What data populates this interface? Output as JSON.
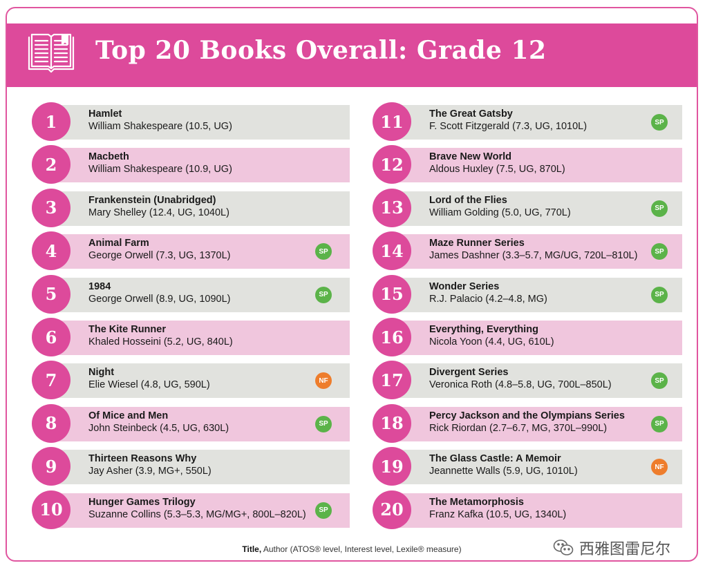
{
  "header": {
    "title": "Top 20 Books Overall: Grade 12",
    "icon": "open-book-icon"
  },
  "colors": {
    "brand_pink": "#dd4a9b",
    "row_gray": "#e1e2de",
    "row_pink": "#f0c6dd",
    "sp_green": "#5bb349",
    "nf_orange": "#ee7d2c"
  },
  "books": [
    {
      "rank": "1",
      "title": "Hamlet",
      "author": "William Shakespeare (10.5, UG)",
      "badge": ""
    },
    {
      "rank": "2",
      "title": "Macbeth",
      "author": "William Shakespeare (10.9, UG)",
      "badge": ""
    },
    {
      "rank": "3",
      "title": "Frankenstein (Unabridged)",
      "author": "Mary Shelley (12.4, UG, 1040L)",
      "badge": ""
    },
    {
      "rank": "4",
      "title": "Animal Farm",
      "author": "George Orwell (7.3, UG, 1370L)",
      "badge": "SP"
    },
    {
      "rank": "5",
      "title": "1984",
      "author": "George Orwell (8.9, UG, 1090L)",
      "badge": "SP"
    },
    {
      "rank": "6",
      "title": "The Kite Runner",
      "author": "Khaled Hosseini (5.2, UG, 840L)",
      "badge": ""
    },
    {
      "rank": "7",
      "title": "Night",
      "author": "Elie Wiesel (4.8, UG, 590L)",
      "badge": "NF"
    },
    {
      "rank": "8",
      "title": "Of Mice and Men",
      "author": "John Steinbeck (4.5, UG, 630L)",
      "badge": "SP"
    },
    {
      "rank": "9",
      "title": "Thirteen Reasons Why",
      "author": "Jay Asher (3.9, MG+, 550L)",
      "badge": ""
    },
    {
      "rank": "10",
      "title": "Hunger Games Trilogy",
      "author": "Suzanne Collins (5.3–5.3, MG/MG+, 800L–820L)",
      "badge": "SP"
    },
    {
      "rank": "11",
      "title": "The Great Gatsby",
      "author": "F. Scott Fitzgerald (7.3, UG, 1010L)",
      "badge": "SP"
    },
    {
      "rank": "12",
      "title": "Brave New World",
      "author": "Aldous Huxley (7.5, UG, 870L)",
      "badge": ""
    },
    {
      "rank": "13",
      "title": "Lord of the Flies",
      "author": "William Golding (5.0, UG, 770L)",
      "badge": "SP"
    },
    {
      "rank": "14",
      "title": "Maze Runner Series",
      "author": "James Dashner (3.3–5.7, MG/UG, 720L–810L)",
      "badge": "SP"
    },
    {
      "rank": "15",
      "title": "Wonder Series",
      "author": "R.J. Palacio (4.2–4.8, MG)",
      "badge": "SP"
    },
    {
      "rank": "16",
      "title": "Everything, Everything",
      "author": "Nicola Yoon (4.4, UG, 610L)",
      "badge": ""
    },
    {
      "rank": "17",
      "title": "Divergent Series",
      "author": "Veronica Roth (4.8–5.8, UG, 700L–850L)",
      "badge": "SP"
    },
    {
      "rank": "18",
      "title": "Percy Jackson and the Olympians Series",
      "author": "Rick Riordan (2.7–6.7, MG, 370L–990L)",
      "badge": "SP"
    },
    {
      "rank": "19",
      "title": "The Glass Castle: A Memoir",
      "author": "Jeannette Walls (5.9, UG, 1010L)",
      "badge": "NF"
    },
    {
      "rank": "20",
      "title": "The Metamorphosis",
      "author": "Franz Kafka (10.5, UG, 1340L)",
      "badge": ""
    }
  ],
  "footnote": {
    "title_word": "Title,",
    "author_word": "Author",
    "rest": "(ATOS® level, Interest level, Lexile® measure)"
  },
  "watermark": {
    "icon": "wechat-icon",
    "text": "西雅图雷尼尔"
  }
}
